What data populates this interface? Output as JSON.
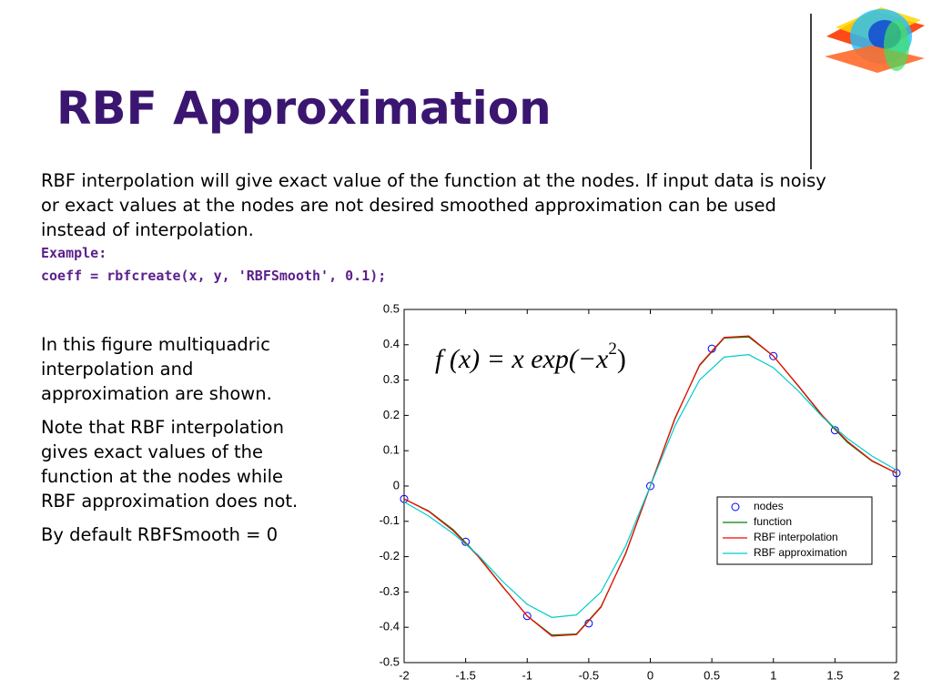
{
  "slide": {
    "title": "RBF Approximation",
    "intro": "RBF interpolation will give exact value of the function at the nodes. If input data is noisy or exact values at the nodes are not desired smoothed approximation can be used instead of interpolation.",
    "example_label": "Example:",
    "example_code": "coeff = rbfcreate(x, y, 'RBFSmooth', 0.1);",
    "notes": [
      "In this figure multiquadric interpolation and approximation are shown.",
      "Note that RBF interpolation gives exact values of the function at the nodes while RBF approximation does not.",
      "By default RBFSmooth = 0"
    ]
  },
  "chart_data": {
    "type": "line",
    "annotation": [
      "f (x) = x exp(−x",
      "2",
      ")"
    ],
    "xlim": [
      -2,
      2
    ],
    "ylim": [
      -0.5,
      0.5
    ],
    "xticks": [
      -2,
      -1.5,
      -1,
      -0.5,
      0,
      0.5,
      1,
      1.5,
      2
    ],
    "yticks": [
      -0.5,
      -0.4,
      -0.3,
      -0.2,
      -0.1,
      0,
      0.1,
      0.2,
      0.3,
      0.4,
      0.5
    ],
    "grid": false,
    "legend": "lower right",
    "series": [
      {
        "name": "nodes",
        "mode": "markers",
        "color": "#0000ff",
        "x": [
          -2,
          -1.5,
          -1,
          -0.5,
          0,
          0.5,
          1,
          1.5,
          2
        ],
        "values": [
          -0.0366,
          -0.158,
          -0.368,
          -0.389,
          0,
          0.389,
          0.368,
          0.158,
          0.0366
        ]
      },
      {
        "name": "function",
        "mode": "lines",
        "color": "#008000",
        "x": [
          -2,
          -1.8,
          -1.6,
          -1.4,
          -1.2,
          -1,
          -0.8,
          -0.6,
          -0.4,
          -0.2,
          0,
          0.2,
          0.4,
          0.6,
          0.8,
          1,
          1.2,
          1.4,
          1.6,
          1.8,
          2
        ],
        "values": [
          -0.0366,
          -0.0705,
          -0.124,
          -0.197,
          -0.284,
          -0.368,
          -0.422,
          -0.419,
          -0.341,
          -0.192,
          0,
          0.192,
          0.341,
          0.419,
          0.422,
          0.368,
          0.284,
          0.197,
          0.124,
          0.0705,
          0.0366
        ]
      },
      {
        "name": "RBF interpolation",
        "mode": "lines",
        "color": "#ff0000",
        "x": [
          -2,
          -1.8,
          -1.6,
          -1.4,
          -1.2,
          -1,
          -0.8,
          -0.6,
          -0.4,
          -0.2,
          0,
          0.2,
          0.4,
          0.6,
          0.8,
          1,
          1.2,
          1.4,
          1.6,
          1.8,
          2
        ],
        "values": [
          -0.0366,
          -0.072,
          -0.127,
          -0.199,
          -0.285,
          -0.368,
          -0.425,
          -0.421,
          -0.343,
          -0.19,
          0,
          0.19,
          0.343,
          0.421,
          0.425,
          0.368,
          0.285,
          0.199,
          0.127,
          0.072,
          0.0366
        ]
      },
      {
        "name": "RBF approximation",
        "mode": "lines",
        "color": "#00cccc",
        "x": [
          -2,
          -1.8,
          -1.6,
          -1.4,
          -1.2,
          -1,
          -0.8,
          -0.6,
          -0.4,
          -0.2,
          0,
          0.2,
          0.4,
          0.6,
          0.8,
          1,
          1.2,
          1.4,
          1.6,
          1.8,
          2
        ],
        "values": [
          -0.045,
          -0.085,
          -0.135,
          -0.195,
          -0.27,
          -0.335,
          -0.372,
          -0.365,
          -0.3,
          -0.17,
          0,
          0.17,
          0.3,
          0.365,
          0.372,
          0.335,
          0.27,
          0.195,
          0.135,
          0.085,
          0.045
        ]
      }
    ]
  }
}
